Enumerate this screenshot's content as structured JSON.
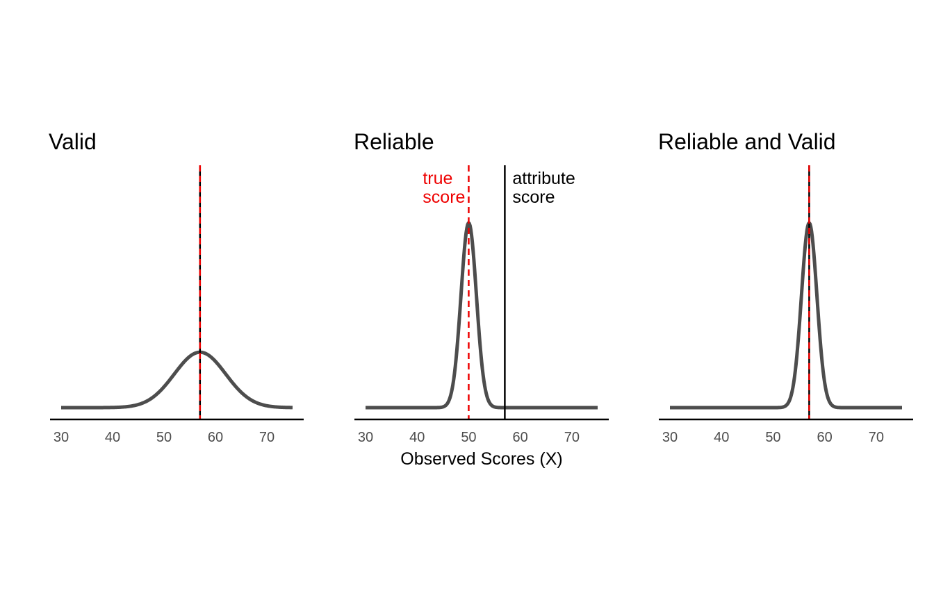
{
  "chart_data": [
    {
      "type": "line",
      "title": "Valid",
      "xlabel": "",
      "ylabel": "",
      "xlim": [
        30,
        75
      ],
      "x_ticks": [
        "30",
        "40",
        "50",
        "60",
        "70"
      ],
      "grid": false,
      "curve": {
        "distribution": "normal",
        "mean": 57,
        "sd": 5
      },
      "true_score": 57,
      "attribute_score": 57,
      "annotations": []
    },
    {
      "type": "line",
      "title": "Reliable",
      "xlabel": "Observed Scores (X)",
      "ylabel": "",
      "xlim": [
        30,
        75
      ],
      "x_ticks": [
        "30",
        "40",
        "50",
        "60",
        "70"
      ],
      "grid": false,
      "curve": {
        "distribution": "normal",
        "mean": 50,
        "sd": 1.5
      },
      "true_score": 50,
      "attribute_score": 57,
      "annotations": [
        {
          "lines": [
            "true",
            "score"
          ],
          "color": "#ee0000",
          "x": 50
        },
        {
          "lines": [
            "attribute",
            "score"
          ],
          "color": "#000000",
          "x": 57
        }
      ]
    },
    {
      "type": "line",
      "title": "Reliable and Valid",
      "xlabel": "",
      "ylabel": "",
      "xlim": [
        30,
        75
      ],
      "x_ticks": [
        "30",
        "40",
        "50",
        "60",
        "70"
      ],
      "grid": false,
      "curve": {
        "distribution": "normal",
        "mean": 57,
        "sd": 1.5
      },
      "true_score": 57,
      "attribute_score": 57,
      "annotations": []
    }
  ],
  "colors": {
    "curve": "#4d4d4d",
    "true_score_line": "#ee0000",
    "attribute_line": "#000000",
    "axis": "#000000",
    "tick_text": "#4d4d4d"
  }
}
